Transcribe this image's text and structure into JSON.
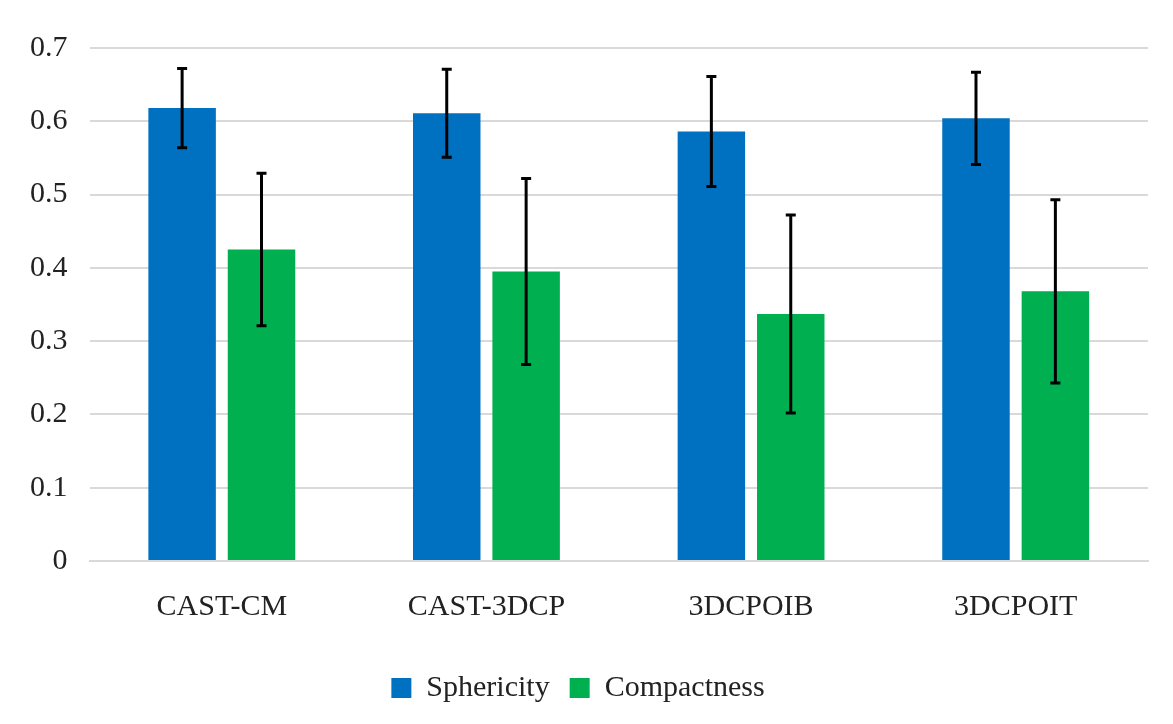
{
  "chart_data": {
    "type": "bar",
    "categories": [
      "CAST-CM",
      "CAST-3DCP",
      "3DCPOIB",
      "3DCPOIT"
    ],
    "series": [
      {
        "name": "Sphericity",
        "color": "#0070c0",
        "values": [
          0.618,
          0.611,
          0.586,
          0.604
        ],
        "errors": [
          0.054,
          0.06,
          0.075,
          0.063
        ]
      },
      {
        "name": "Compactness",
        "color": "#00b050",
        "values": [
          0.425,
          0.395,
          0.337,
          0.368
        ],
        "errors": [
          0.104,
          0.127,
          0.135,
          0.125
        ]
      }
    ],
    "ylim": [
      0,
      0.7
    ],
    "yticks": [
      0,
      0.1,
      0.2,
      0.3,
      0.4,
      0.5,
      0.6,
      0.7
    ],
    "grid": "y",
    "legend": "bottom"
  }
}
